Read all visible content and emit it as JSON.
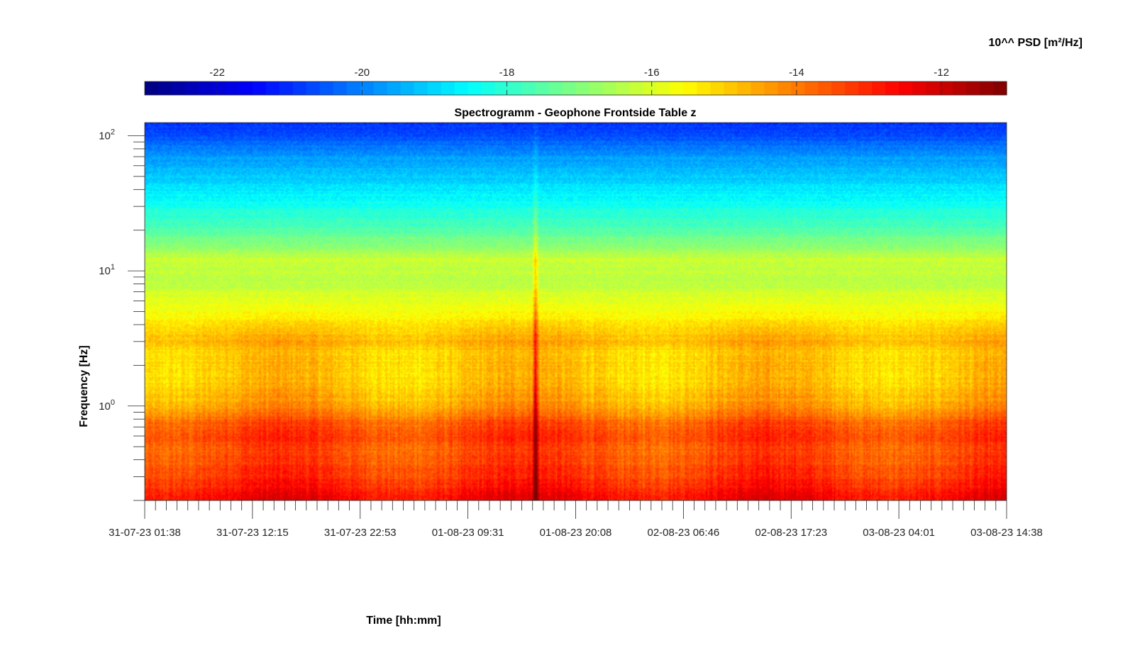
{
  "chart_data": {
    "type": "heatmap",
    "title": "Spectrogramm - Geophone Frontside Table z",
    "xlabel": "Time [hh:mm]",
    "ylabel": "Frequency [Hz]",
    "colorbar_label": "10^^ PSD [m²/Hz]",
    "colormap": "jet",
    "color_range": [
      -23,
      -11.1
    ],
    "colorbar_ticks": [
      "-22",
      "-20",
      "-18",
      "-16",
      "-14",
      "-12"
    ],
    "colorbar_tick_values": [
      -22,
      -20,
      -18,
      -16,
      -14,
      -12
    ],
    "x_tick_labels": [
      "31-07-23 01:38",
      "31-07-23 12:15",
      "31-07-23 22:53",
      "01-08-23 09:31",
      "01-08-23 20:08",
      "02-08-23 06:46",
      "02-08-23 17:23",
      "03-08-23 04:01",
      "03-08-23 14:38"
    ],
    "x_range": [
      "31-07-23 01:38",
      "03-08-23 14:38"
    ],
    "x_minor_ticks_per_major": 10,
    "y_scale": "log",
    "y_range": [
      0.2,
      125
    ],
    "y_tick_labels": [
      "10^0",
      "10^1",
      "10^2"
    ],
    "y_tick_values": [
      1,
      10,
      100
    ],
    "grid": false,
    "psd_profile": [
      {
        "freq_hz": 0.2,
        "log10_psd": -12.5
      },
      {
        "freq_hz": 0.3,
        "log10_psd": -13.2
      },
      {
        "freq_hz": 0.45,
        "log10_psd": -13.6
      },
      {
        "freq_hz": 0.6,
        "log10_psd": -13.3
      },
      {
        "freq_hz": 0.75,
        "log10_psd": -13.6
      },
      {
        "freq_hz": 1.0,
        "log10_psd": -14.5
      },
      {
        "freq_hz": 1.5,
        "log10_psd": -14.9
      },
      {
        "freq_hz": 2.5,
        "log10_psd": -15.0
      },
      {
        "freq_hz": 3.0,
        "log10_psd": -14.6
      },
      {
        "freq_hz": 5.0,
        "log10_psd": -15.6
      },
      {
        "freq_hz": 8.0,
        "log10_psd": -16.3
      },
      {
        "freq_hz": 12.0,
        "log10_psd": -16.2
      },
      {
        "freq_hz": 20.0,
        "log10_psd": -17.6
      },
      {
        "freq_hz": 40.0,
        "log10_psd": -18.8
      },
      {
        "freq_hz": 70.0,
        "log10_psd": -19.7
      },
      {
        "freq_hz": 100.0,
        "log10_psd": -20.6
      },
      {
        "freq_hz": 125.0,
        "log10_psd": -20.9
      }
    ],
    "events": [
      {
        "time": "01-08-23 16:10",
        "type": "broadband transient",
        "max_freq_hz": 120
      }
    ]
  }
}
